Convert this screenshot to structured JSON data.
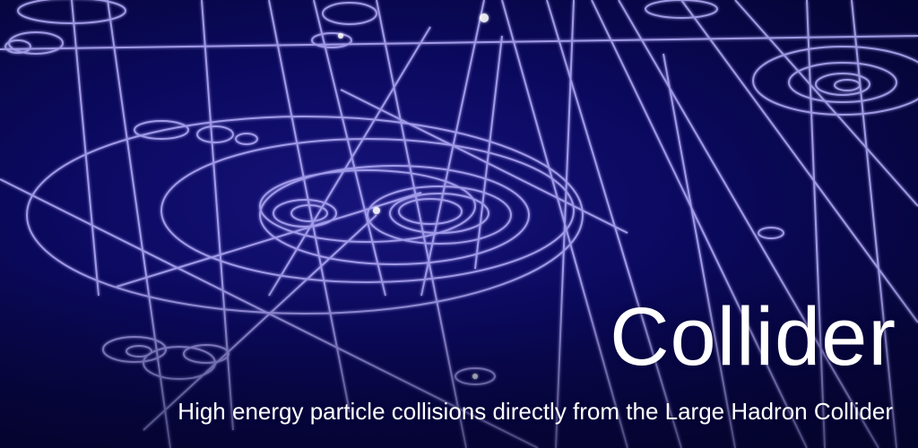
{
  "banner": {
    "title": "Collider",
    "tagline": "High energy particle collisions directly from the Large Hadron Collider"
  },
  "colors": {
    "background": "#0b0960",
    "track": "#b9b2ff",
    "text": "#ffffff"
  },
  "background_image": {
    "icon": "particle-tracks-icon"
  }
}
